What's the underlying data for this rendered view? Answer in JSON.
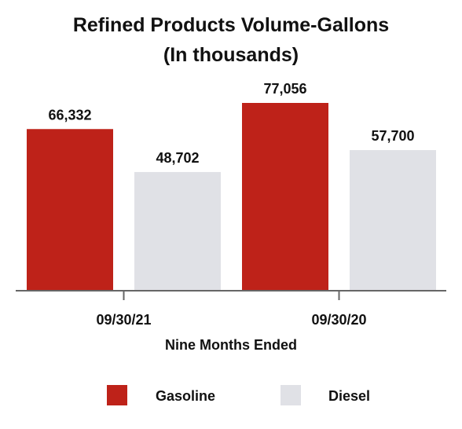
{
  "chart_data": {
    "type": "bar",
    "title": "Refined Products Volume-Gallons",
    "subtitle": "(In thousands)",
    "xlabel": "Nine Months Ended",
    "ylabel": "",
    "categories": [
      "09/30/21",
      "09/30/20"
    ],
    "series": [
      {
        "name": "Gasoline",
        "values": [
          66332,
          77056
        ],
        "labels": [
          "66,332",
          "77,056"
        ],
        "color": "#be2219"
      },
      {
        "name": "Diesel",
        "values": [
          48702,
          57700
        ],
        "labels": [
          "48,702",
          "57,700"
        ],
        "color": "#e0e1e6"
      }
    ],
    "ylim": [
      0,
      77056
    ],
    "grid": false,
    "legend_position": "bottom"
  }
}
